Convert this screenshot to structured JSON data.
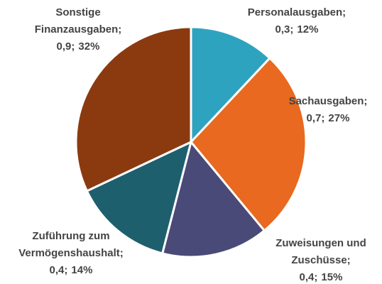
{
  "chart_data": {
    "type": "pie",
    "categories": [
      "Personalausgaben;",
      "Sachausgaben;",
      "Zuweisungen und Zuschüsse;",
      "Zuführung zum Vermögenshaushalt;",
      "Sonstige Finanzausgaben;"
    ],
    "amounts": [
      0.3,
      0.7,
      0.4,
      0.4,
      0.9
    ],
    "amount_labels": [
      "0,3;",
      "0,7;",
      "0,4;",
      "0,4;",
      "0,9;"
    ],
    "values": [
      12,
      27,
      15,
      14,
      32
    ],
    "value_labels": [
      "12%",
      "27%",
      "15%",
      "14%",
      "32%"
    ],
    "colors": [
      "#2ea3c0",
      "#e8691f",
      "#4a4a78",
      "#1e5f6e",
      "#8b3a10"
    ]
  }
}
